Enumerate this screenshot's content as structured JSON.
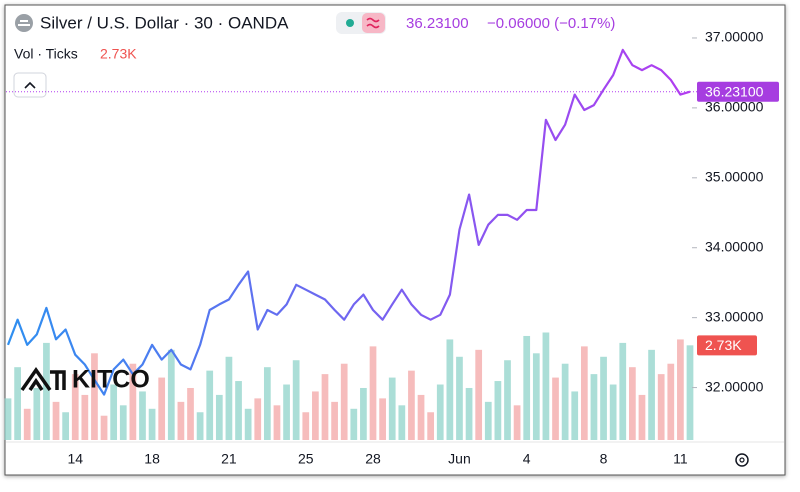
{
  "chart_data": {
    "type": "line",
    "title": "Silver / U.S. Dollar · 30 · OANDA",
    "last": {
      "value": 36.231,
      "label": "36.23100"
    },
    "change": "−0.06000 (−0.17%)",
    "volume_title": "Vol · Ticks",
    "volume_last": {
      "value": 2.73,
      "label": "2.73K"
    },
    "logo": "KITCO",
    "line_gradient": [
      "#2f8ff0",
      "#b23cf0"
    ],
    "volume_colors": [
      "#8fd3c9",
      "#f3a5a5"
    ],
    "categories": [
      null,
      null,
      null,
      null,
      null,
      null,
      null,
      "14",
      null,
      null,
      null,
      null,
      null,
      null,
      null,
      "18",
      null,
      null,
      null,
      null,
      null,
      null,
      null,
      "21",
      null,
      null,
      null,
      null,
      null,
      null,
      null,
      "25",
      null,
      null,
      null,
      null,
      null,
      null,
      "28",
      null,
      null,
      null,
      null,
      null,
      null,
      null,
      null,
      "Jun",
      null,
      null,
      null,
      null,
      null,
      null,
      "4",
      null,
      null,
      null,
      null,
      null,
      null,
      null,
      "8",
      null,
      null,
      null,
      null,
      null,
      null,
      null,
      "11",
      null
    ],
    "values": [
      32.61,
      32.97,
      32.61,
      32.76,
      33.14,
      32.69,
      32.83,
      32.47,
      32.33,
      32.11,
      31.9,
      32.26,
      32.4,
      32.19,
      32.33,
      32.61,
      32.4,
      32.54,
      32.33,
      32.26,
      32.61,
      33.11,
      33.19,
      33.26,
      33.47,
      33.66,
      32.83,
      33.11,
      33.04,
      33.19,
      33.47,
      33.4,
      33.33,
      33.26,
      33.11,
      32.97,
      33.19,
      33.33,
      33.11,
      32.97,
      33.19,
      33.4,
      33.19,
      33.04,
      32.97,
      33.04,
      33.33,
      34.26,
      34.76,
      34.04,
      34.33,
      34.47,
      34.47,
      34.4,
      34.54,
      34.54,
      35.83,
      35.54,
      35.76,
      36.19,
      35.97,
      36.04,
      36.26,
      36.47,
      36.83,
      36.61,
      36.54,
      36.61,
      36.54,
      36.4,
      36.19,
      36.231
    ],
    "volume": [
      1.2,
      2.1,
      0.9,
      1.5,
      2.8,
      1.1,
      0.8,
      1.9,
      1.3,
      2.5,
      0.7,
      1.6,
      1.0,
      2.2,
      1.4,
      0.9,
      1.8,
      2.6,
      1.1,
      1.5,
      0.8,
      2.0,
      1.3,
      2.4,
      1.7,
      0.9,
      1.2,
      2.1,
      1.0,
      1.6,
      2.3,
      0.8,
      1.4,
      1.9,
      1.1,
      2.2,
      0.9,
      1.5,
      2.7,
      1.2,
      1.8,
      1.0,
      2.0,
      1.3,
      0.8,
      1.6,
      2.9,
      2.4,
      1.5,
      2.6,
      1.1,
      1.7,
      2.3,
      1.0,
      3.0,
      2.5,
      3.1,
      1.8,
      2.2,
      1.4,
      2.7,
      1.9,
      2.4,
      1.6,
      2.8,
      2.1,
      1.3,
      2.6,
      1.9,
      2.2,
      2.9,
      2.73
    ],
    "ylim": [
      31.25,
      37.4
    ],
    "yticks": [
      {
        "value": 32,
        "label": "32.00000"
      },
      {
        "value": 33,
        "label": "33.00000"
      },
      {
        "value": 34,
        "label": "34.00000"
      },
      {
        "value": 35,
        "label": "35.00000"
      },
      {
        "value": 36,
        "label": "36.00000"
      },
      {
        "value": 37,
        "label": "37.00000"
      }
    ],
    "volume_ylim": [
      0,
      12.4
    ],
    "grid": false
  }
}
